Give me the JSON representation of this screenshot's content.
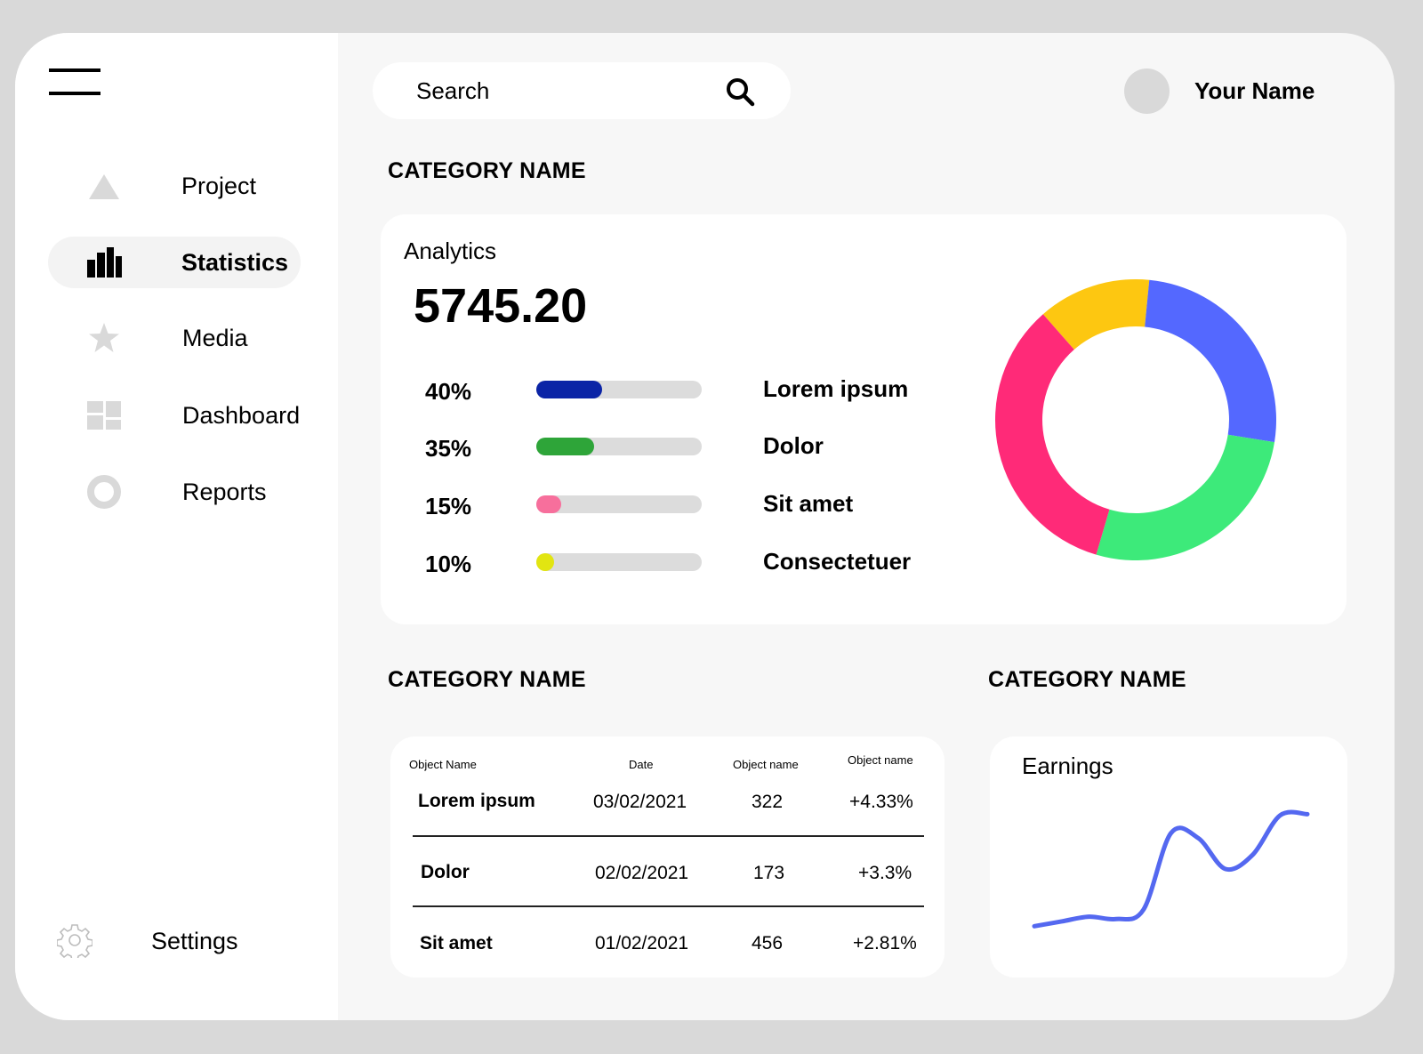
{
  "sidebar": {
    "items": [
      {
        "label": "Project",
        "icon": "triangle-icon",
        "active": false
      },
      {
        "label": "Statistics",
        "icon": "bar-chart-icon",
        "active": true
      },
      {
        "label": "Media",
        "icon": "star-icon",
        "active": false
      },
      {
        "label": "Dashboard",
        "icon": "dashboard-icon",
        "active": false
      },
      {
        "label": "Reports",
        "icon": "ring-icon",
        "active": false
      }
    ],
    "settings_label": "Settings"
  },
  "header": {
    "search_placeholder": "Search",
    "user_name": "Your Name"
  },
  "sections": {
    "top_category": "CATEGORY NAME",
    "table_category": "CATEGORY NAME",
    "earnings_category": "CATEGORY NAME"
  },
  "analytics": {
    "title": "Analytics",
    "value": "5745.20",
    "metrics": [
      {
        "pct": "40%",
        "value": 0.4,
        "name": "Lorem ipsum",
        "color": "#0b24a6"
      },
      {
        "pct": "35%",
        "value": 0.35,
        "name": "Dolor",
        "color": "#2ea539"
      },
      {
        "pct": "15%",
        "value": 0.15,
        "name": "Sit amet",
        "color": "#f76f9c"
      },
      {
        "pct": "10%",
        "value": 0.1,
        "name": "Consectetuer",
        "color": "#e2e511"
      }
    ]
  },
  "chart_data": [
    {
      "type": "pie",
      "donut": true,
      "slices": [
        {
          "value": 13,
          "color": "#fdc711"
        },
        {
          "value": 26,
          "color": "#5468ff"
        },
        {
          "value": 27,
          "color": "#3dea7a"
        },
        {
          "value": 34,
          "color": "#ff2a78"
        }
      ]
    },
    {
      "type": "line",
      "title": "Earnings",
      "color": "#5468f0",
      "x": [
        0,
        1,
        2,
        3,
        4,
        5,
        6,
        7,
        8,
        9,
        10
      ],
      "y": [
        2,
        6,
        10,
        8,
        16,
        80,
        76,
        50,
        62,
        95,
        96
      ]
    }
  ],
  "table": {
    "headers": [
      "Object Name",
      "Date",
      "Object name",
      "Object name"
    ],
    "rows": [
      {
        "name": "Lorem ipsum",
        "date": "03/02/2021",
        "count": "322",
        "change": "+4.33%"
      },
      {
        "name": "Dolor",
        "date": "02/02/2021",
        "count": "173",
        "change": "+3.3%"
      },
      {
        "name": "Sit amet",
        "date": "01/02/2021",
        "count": "456",
        "change": "+2.81%"
      }
    ]
  },
  "earnings": {
    "title": "Earnings"
  }
}
